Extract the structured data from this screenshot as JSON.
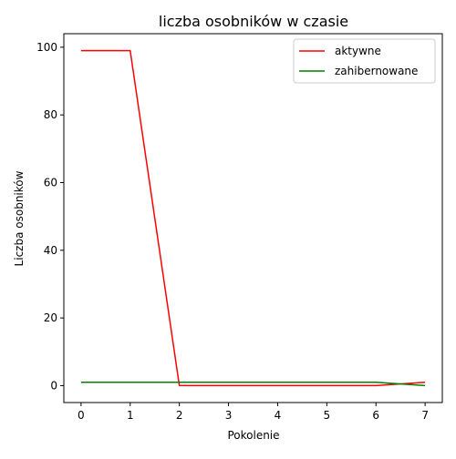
{
  "chart_data": {
    "type": "line",
    "title": "liczba osobników w czasie",
    "xlabel": "Pokolenie",
    "ylabel": "Liczba osobników",
    "x": [
      0,
      1,
      2,
      3,
      4,
      5,
      6,
      7
    ],
    "xlim": [
      -0.35,
      7.35
    ],
    "ylim": [
      -5,
      104
    ],
    "xticks": [
      0,
      1,
      2,
      3,
      4,
      5,
      6,
      7
    ],
    "yticks": [
      0,
      20,
      40,
      60,
      80,
      100
    ],
    "grid": false,
    "legend_position": "top-right",
    "series": [
      {
        "name": "aktywne",
        "color": "#ff0000",
        "values": [
          99,
          99,
          0,
          0,
          0,
          0,
          0,
          1
        ]
      },
      {
        "name": "zahibernowane",
        "color": "#008000",
        "values": [
          1,
          1,
          1,
          1,
          1,
          1,
          1,
          0
        ]
      }
    ]
  }
}
